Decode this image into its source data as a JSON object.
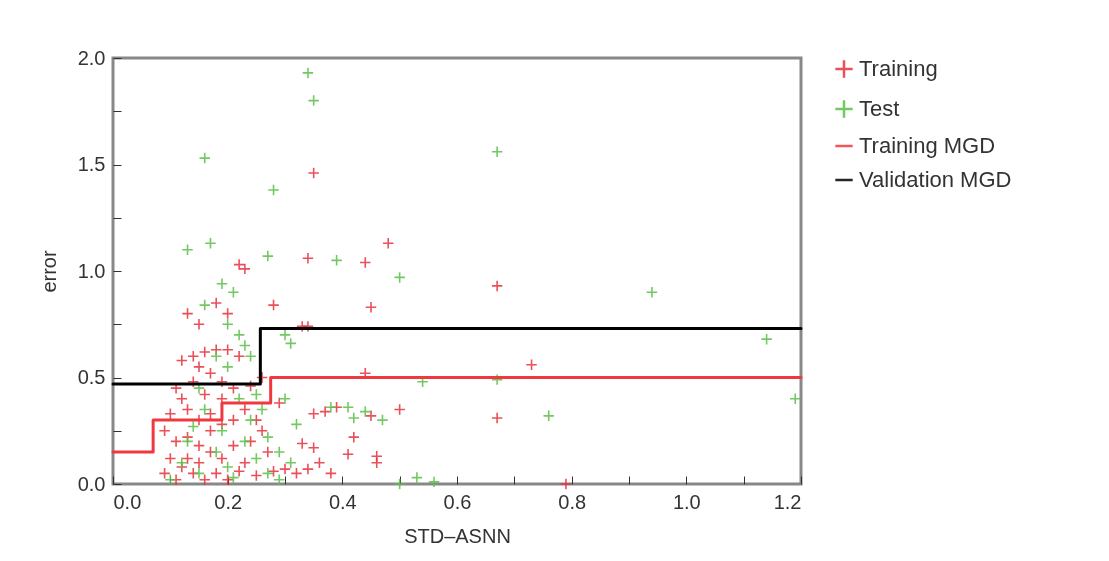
{
  "chart_data": {
    "type": "scatter",
    "xlabel": "STD–ASNN",
    "ylabel": "error",
    "xlim": [
      0,
      1.2
    ],
    "ylim": [
      0,
      2.0
    ],
    "xticks": [
      {
        "value": 0,
        "label": "0.0"
      },
      {
        "value": 0.1,
        "label": null
      },
      {
        "value": 0.2,
        "label": "0.2"
      },
      {
        "value": 0.3,
        "label": null
      },
      {
        "value": 0.4,
        "label": "0.4"
      },
      {
        "value": 0.5,
        "label": null
      },
      {
        "value": 0.6,
        "label": "0.6"
      },
      {
        "value": 0.7,
        "label": null
      },
      {
        "value": 0.8,
        "label": "0.8"
      },
      {
        "value": 0.9,
        "label": null
      },
      {
        "value": 1,
        "label": "1.0"
      },
      {
        "value": 1.1,
        "label": null
      },
      {
        "value": 1.2,
        "label": "1.2"
      }
    ],
    "yticks": [
      {
        "value": 0,
        "label": "0.0"
      },
      {
        "value": 0.25,
        "label": null
      },
      0.5,
      {
        "value": 0.75,
        "label": null
      },
      {
        "value": 1,
        "label": "1.0"
      },
      {
        "value": 1.25,
        "label": null
      },
      1.5,
      {
        "value": 1.75,
        "label": null
      },
      {
        "value": 2,
        "label": "2.0"
      }
    ],
    "legend": "top right",
    "grid": false,
    "series": [
      {
        "name": "Training",
        "type": "scatter",
        "marker": "cross",
        "color": "#e8313c",
        "x": [
          0.35,
          0.48,
          0.34,
          0.44,
          0.22,
          0.23,
          0.67,
          0.45,
          0.28,
          0.33,
          0.34,
          0.73,
          0.44,
          0.67,
          0.5,
          0.79,
          0.45,
          0.39,
          0.37,
          0.35,
          0.42,
          0.41,
          0.46,
          0.46,
          0.33,
          0.35,
          0.36,
          0.32,
          0.3,
          0.38,
          0.34,
          0.27,
          0.28,
          0.25,
          0.12,
          0.14,
          0.16,
          0.18,
          0.2,
          0.15,
          0.17,
          0.19,
          0.22,
          0.11,
          0.14,
          0.16,
          0.12,
          0.1,
          0.13,
          0.15,
          0.17,
          0.19,
          0.21,
          0.23,
          0.25,
          0.09,
          0.11,
          0.13,
          0.15,
          0.17,
          0.19,
          0.21,
          0.23,
          0.1,
          0.12,
          0.14,
          0.16,
          0.18,
          0.2,
          0.22,
          0.24,
          0.26,
          0.09,
          0.11,
          0.13,
          0.15,
          0.17,
          0.19,
          0.21,
          0.18,
          0.2,
          0.15,
          0.13,
          0.24,
          0.26,
          0.29
        ],
        "values": [
          1.46,
          1.13,
          1.06,
          1.04,
          1.03,
          1.01,
          0.93,
          0.83,
          0.84,
          0.74,
          0.74,
          0.56,
          0.52,
          0.31,
          0.35,
          0.0,
          0.32,
          0.36,
          0.34,
          0.33,
          0.22,
          0.14,
          0.13,
          0.1,
          0.19,
          0.17,
          0.1,
          0.05,
          0.07,
          0.05,
          0.07,
          0.15,
          0.06,
          0.04,
          0.58,
          0.6,
          0.62,
          0.63,
          0.63,
          0.55,
          0.52,
          0.48,
          0.6,
          0.45,
          0.48,
          0.42,
          0.4,
          0.33,
          0.35,
          0.3,
          0.33,
          0.28,
          0.3,
          0.35,
          0.3,
          0.25,
          0.2,
          0.22,
          0.18,
          0.15,
          0.12,
          0.18,
          0.1,
          0.12,
          0.08,
          0.05,
          0.02,
          0.05,
          0.02,
          0.06,
          0.2,
          0.25,
          0.05,
          0.02,
          0.12,
          0.1,
          0.25,
          0.4,
          0.45,
          0.85,
          0.8,
          0.75,
          0.8,
          0.46,
          0.5,
          0.38
        ]
      },
      {
        "name": "Test",
        "type": "scatter",
        "marker": "cross",
        "color": "#5cbf4a",
        "x": [
          0.34,
          0.35,
          0.16,
          0.28,
          0.67,
          0.94,
          1.14,
          1.19,
          0.13,
          0.17,
          0.27,
          0.39,
          0.5,
          0.3,
          0.31,
          0.19,
          0.16,
          0.21,
          0.54,
          0.67,
          0.76,
          0.5,
          0.53,
          0.56,
          0.38,
          0.41,
          0.44,
          0.47,
          0.42,
          0.3,
          0.32,
          0.27,
          0.29,
          0.31,
          0.2,
          0.22,
          0.23,
          0.24,
          0.2,
          0.25,
          0.18,
          0.15,
          0.22,
          0.14,
          0.12,
          0.15,
          0.18,
          0.2,
          0.23,
          0.25,
          0.27,
          0.1,
          0.19,
          0.16,
          0.24,
          0.13,
          0.21,
          0.26,
          0.29
        ],
        "values": [
          1.93,
          1.8,
          1.53,
          1.38,
          1.56,
          0.9,
          0.68,
          0.4,
          1.1,
          1.13,
          1.07,
          1.05,
          0.97,
          0.7,
          0.66,
          0.94,
          0.84,
          0.9,
          0.48,
          0.49,
          0.32,
          0.0,
          0.03,
          0.01,
          0.36,
          0.36,
          0.34,
          0.3,
          0.31,
          0.4,
          0.28,
          0.22,
          0.15,
          0.1,
          0.75,
          0.7,
          0.65,
          0.6,
          0.55,
          0.42,
          0.6,
          0.45,
          0.4,
          0.27,
          0.1,
          0.05,
          0.15,
          0.08,
          0.2,
          0.12,
          0.05,
          0.02,
          0.25,
          0.35,
          0.3,
          0.2,
          0.03,
          0.35,
          0.02
        ]
      },
      {
        "name": "Training MGD",
        "type": "step",
        "line_style": "solid",
        "color": "#f0393f",
        "x": [
          0,
          0.07,
          0.19,
          0.275,
          1.2
        ],
        "values": [
          0.15,
          0.3,
          0.38,
          0.5,
          0.5
        ]
      },
      {
        "name": "Validation MGD",
        "type": "step",
        "line_style": "solid",
        "color": "#000000",
        "x": [
          0,
          0.257,
          1.2
        ],
        "values": [
          0.47,
          0.73,
          0.73
        ]
      }
    ]
  }
}
